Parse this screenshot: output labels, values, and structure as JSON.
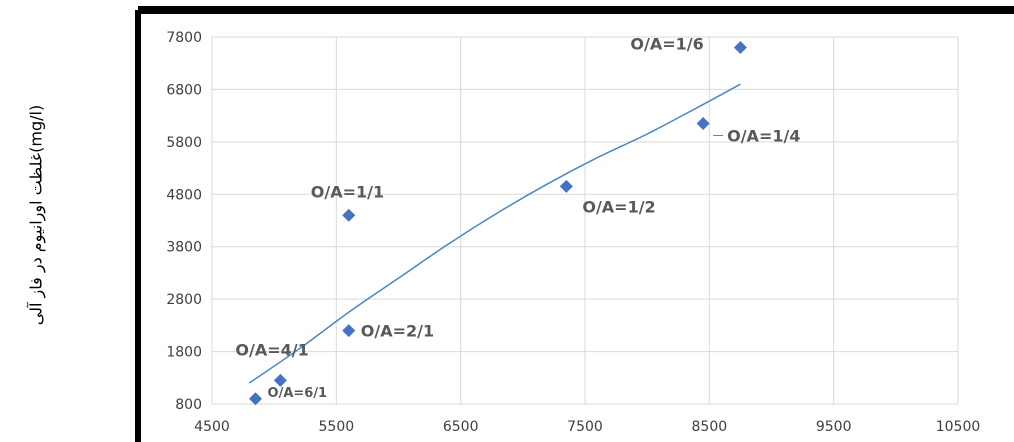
{
  "chart_data": {
    "type": "scatter",
    "title": "",
    "xlabel": "",
    "ylabel": "غلظت اورانیوم در فاز آلی(mg/l)",
    "xlim": [
      4500,
      10500
    ],
    "ylim": [
      800,
      7800
    ],
    "xticks": [
      4500,
      5500,
      6500,
      7500,
      8500,
      9500,
      10500
    ],
    "yticks": [
      800,
      1800,
      2800,
      3800,
      4800,
      5800,
      6800,
      7800
    ],
    "grid": true,
    "series": [
      {
        "points": [
          {
            "x": 4850,
            "y": 900,
            "label": "O/A=6/1"
          },
          {
            "x": 5050,
            "y": 1250,
            "label": "O/A=4/1"
          },
          {
            "x": 5600,
            "y": 2200,
            "label": "O/A=2/1"
          },
          {
            "x": 5600,
            "y": 4400,
            "label": "O/A=1/1"
          },
          {
            "x": 7350,
            "y": 4950,
            "label": "O/A=1/2"
          },
          {
            "x": 8450,
            "y": 6150,
            "label": "O/A=1/4"
          },
          {
            "x": 8750,
            "y": 7600,
            "label": "O/A=1/6"
          }
        ]
      }
    ],
    "trendline": {
      "type": "polynomial",
      "points": [
        {
          "x": 4800,
          "y": 1200
        },
        {
          "x": 5200,
          "y": 1850
        },
        {
          "x": 5600,
          "y": 2550
        },
        {
          "x": 6000,
          "y": 3200
        },
        {
          "x": 6400,
          "y": 3850
        },
        {
          "x": 6800,
          "y": 4450
        },
        {
          "x": 7200,
          "y": 5000
        },
        {
          "x": 7600,
          "y": 5500
        },
        {
          "x": 8000,
          "y": 5950
        },
        {
          "x": 8400,
          "y": 6450
        },
        {
          "x": 8750,
          "y": 6900
        }
      ]
    },
    "colors": {
      "marker": "#4472c4",
      "trendline": "#4a86c5",
      "grid": "#d9d9d9",
      "label": "#595959",
      "frame": "#000000"
    }
  }
}
